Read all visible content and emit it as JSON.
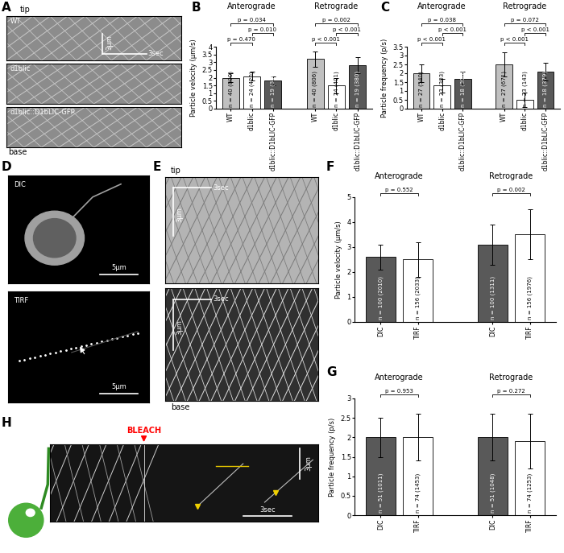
{
  "chart_data": [
    {
      "type": "bar",
      "panel": "B",
      "ylabel": "Particle velocity (µm/s)",
      "ylim": [
        0,
        4
      ],
      "yticks": [
        0,
        0.5,
        1,
        1.5,
        2,
        2.5,
        3,
        3.5,
        4
      ],
      "categories": [
        "Anterograde",
        "Retrograde"
      ],
      "series": [
        {
          "name": "WT",
          "color": "#c0c0c0",
          "values": [
            2.0,
            3.2
          ],
          "errors": [
            0.3,
            0.5
          ],
          "n_labels": [
            "n = 40 (800)",
            "n = 40 (806)"
          ]
        },
        {
          "name": "d1blic",
          "color": "#ffffff",
          "values": [
            2.1,
            1.5
          ],
          "errors": [
            0.3,
            0.5
          ],
          "n_labels": [
            "n = 24 (420)",
            "n = 24 (401)"
          ]
        },
        {
          "name": "d1blic::D1bLIC-GFP",
          "color": "#595959",
          "values": [
            1.8,
            2.8
          ],
          "errors": [
            0.3,
            0.5
          ],
          "n_labels": [
            "n = 19 (380)",
            "n = 19 (380)"
          ]
        }
      ],
      "comparisons": [
        {
          "category": "Anterograde",
          "between": [
            "WT",
            "d1blic"
          ],
          "label": "p = 0.470"
        },
        {
          "category": "Anterograde",
          "between": [
            "d1blic",
            "d1blic::D1bLIC-GFP"
          ],
          "label": "p = 0.010"
        },
        {
          "category": "Anterograde",
          "between": [
            "WT",
            "d1blic::D1bLIC-GFP"
          ],
          "label": "p = 0.034"
        },
        {
          "category": "Retrograde",
          "between": [
            "WT",
            "d1blic"
          ],
          "label": "p < 0.001"
        },
        {
          "category": "Retrograde",
          "between": [
            "d1blic",
            "d1blic::D1bLIC-GFP"
          ],
          "label": "p < 0.001"
        },
        {
          "category": "Retrograde",
          "between": [
            "WT",
            "d1blic::D1bLIC-GFP"
          ],
          "label": "p = 0.002"
        }
      ]
    },
    {
      "type": "bar",
      "panel": "C",
      "ylabel": "Particle frequency (p/s)",
      "ylim": [
        0,
        3.5
      ],
      "yticks": [
        0,
        0.5,
        1,
        1.5,
        2,
        2.5,
        3,
        3.5
      ],
      "categories": [
        "Anterograde",
        "Retrograde"
      ],
      "series": [
        {
          "name": "WT",
          "color": "#c0c0c0",
          "values": [
            2.0,
            2.5
          ],
          "errors": [
            0.5,
            0.7
          ],
          "n_labels": [
            "n = 27 (540)",
            "n = 27 (671)"
          ]
        },
        {
          "name": "d1blic",
          "color": "#ffffff",
          "values": [
            1.3,
            0.5
          ],
          "errors": [
            0.4,
            0.4
          ],
          "n_labels": [
            "n = 23 (303)",
            "n = 23 (143)"
          ]
        },
        {
          "name": "d1blic::D1bLIC-GFP",
          "color": "#595959",
          "values": [
            1.7,
            2.1
          ],
          "errors": [
            0.4,
            0.5
          ],
          "n_labels": [
            "n = 18 (308)",
            "n = 18 (379)"
          ]
        }
      ],
      "comparisons": [
        {
          "category": "Anterograde",
          "between": [
            "WT",
            "d1blic"
          ],
          "label": "p < 0.001"
        },
        {
          "category": "Anterograde",
          "between": [
            "d1blic",
            "d1blic::D1bLIC-GFP"
          ],
          "label": "p < 0.001"
        },
        {
          "category": "Anterograde",
          "between": [
            "WT",
            "d1blic::D1bLIC-GFP"
          ],
          "label": "p = 0.038"
        },
        {
          "category": "Retrograde",
          "between": [
            "WT",
            "d1blic"
          ],
          "label": "p < 0.001"
        },
        {
          "category": "Retrograde",
          "between": [
            "d1blic",
            "d1blic::D1bLIC-GFP"
          ],
          "label": "p < 0.001"
        },
        {
          "category": "Retrograde",
          "between": [
            "WT",
            "d1blic::D1bLIC-GFP"
          ],
          "label": "p = 0.072"
        }
      ]
    },
    {
      "type": "bar",
      "panel": "F",
      "ylabel": "Particle velocity (µm/s)",
      "ylim": [
        0,
        5
      ],
      "yticks": [
        0,
        1,
        2,
        3,
        4,
        5
      ],
      "categories": [
        "Anterograde",
        "Retrograde"
      ],
      "series": [
        {
          "name": "DIC",
          "color": "#595959",
          "values": [
            2.6,
            3.1
          ],
          "errors": [
            0.5,
            0.8
          ],
          "n_labels": [
            "n = 100 (2010)",
            "n = 100 (1311)"
          ]
        },
        {
          "name": "TIRF",
          "color": "#ffffff",
          "values": [
            2.5,
            3.5
          ],
          "errors": [
            0.7,
            1.0
          ],
          "n_labels": [
            "n = 156 (2033)",
            "n = 156 (1976)"
          ]
        }
      ],
      "comparisons": [
        {
          "category": "Anterograde",
          "between": [
            "DIC",
            "TIRF"
          ],
          "label": "p = 0.552"
        },
        {
          "category": "Retrograde",
          "between": [
            "DIC",
            "TIRF"
          ],
          "label": "p = 0.002"
        }
      ]
    },
    {
      "type": "bar",
      "panel": "G",
      "ylabel": "Particle frequency (p/s)",
      "ylim": [
        0,
        3
      ],
      "yticks": [
        0,
        0.5,
        1,
        1.5,
        2,
        2.5,
        3
      ],
      "categories": [
        "Anterograde",
        "Retrograde"
      ],
      "series": [
        {
          "name": "DIC",
          "color": "#595959",
          "values": [
            2.0,
            2.0
          ],
          "errors": [
            0.5,
            0.6
          ],
          "n_labels": [
            "n = 51 (1011)",
            "n = 51 (1048)"
          ]
        },
        {
          "name": "TIRF",
          "color": "#ffffff",
          "values": [
            2.0,
            1.9
          ],
          "errors": [
            0.6,
            0.7
          ],
          "n_labels": [
            "n = 74 (1453)",
            "n = 74 (1253)"
          ]
        }
      ],
      "comparisons": [
        {
          "category": "Anterograde",
          "between": [
            "DIC",
            "TIRF"
          ],
          "label": "p = 0.953"
        },
        {
          "category": "Retrograde",
          "between": [
            "DIC",
            "TIRF"
          ],
          "label": "p = 0.272"
        }
      ]
    }
  ],
  "image_panels": {
    "A": {
      "panel": "A",
      "top_label": "tip",
      "bottom_label": "base",
      "strains": [
        "WT",
        "d1blic",
        "d1blic::D1bLIC-GFP"
      ],
      "time_scale": "3sec",
      "length_scale": "3µm"
    },
    "D": {
      "panel": "D",
      "images": [
        {
          "label": "DIC",
          "scale": "5µm"
        },
        {
          "label": "TIRF",
          "scale": "5µm"
        }
      ]
    },
    "E": {
      "panel": "E",
      "top_label": "tip",
      "bottom_label": "base",
      "time_scale": "3sec",
      "length_scale": "3µm"
    },
    "H": {
      "panel": "H",
      "event": "BLEACH",
      "length_scale": "3µm",
      "time_scale": "3sec"
    }
  }
}
